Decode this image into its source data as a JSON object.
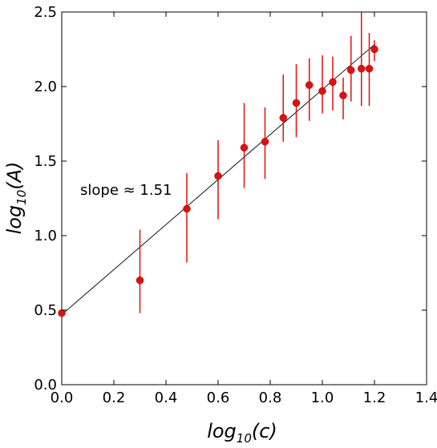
{
  "chart_data": {
    "type": "scatter",
    "xlabel": {
      "base": "log",
      "sub": "10",
      "arg": "(c)"
    },
    "ylabel": {
      "base": "log",
      "sub": "10",
      "arg": "(A)"
    },
    "xlim": [
      0.0,
      1.4
    ],
    "ylim": [
      0.0,
      2.5
    ],
    "xticks": [
      "0.0",
      "0.2",
      "0.4",
      "0.6",
      "0.8",
      "1.0",
      "1.2",
      "1.4"
    ],
    "yticks": [
      "0.0",
      "0.5",
      "1.0",
      "1.5",
      "2.0",
      "2.5"
    ],
    "grid": false,
    "annotation": "slope ≈ 1.51",
    "point_color": "#dd1111",
    "line_color": "#000000",
    "fit_line": {
      "slope": 1.51,
      "intercept": 0.47,
      "x": [
        0.0,
        1.2
      ]
    },
    "series": [
      {
        "x": [
          0.0,
          0.3,
          0.48,
          0.6,
          0.7,
          0.78,
          0.85,
          0.9,
          0.95,
          1.0,
          1.04,
          1.08,
          1.11,
          1.15,
          1.18,
          1.2
        ],
        "y": [
          0.48,
          0.7,
          1.18,
          1.4,
          1.59,
          1.63,
          1.79,
          1.89,
          2.01,
          1.97,
          2.03,
          1.94,
          2.11,
          2.12,
          2.12,
          2.25
        ],
        "ylow": [
          null,
          0.48,
          0.82,
          1.11,
          1.32,
          1.38,
          1.63,
          1.66,
          1.77,
          1.82,
          1.84,
          1.78,
          1.9,
          1.87,
          1.87,
          2.17
        ],
        "yhigh": [
          null,
          1.04,
          1.42,
          1.64,
          1.89,
          1.86,
          2.08,
          2.15,
          2.19,
          2.21,
          2.2,
          2.06,
          2.34,
          2.5,
          2.36,
          2.31
        ]
      }
    ]
  }
}
